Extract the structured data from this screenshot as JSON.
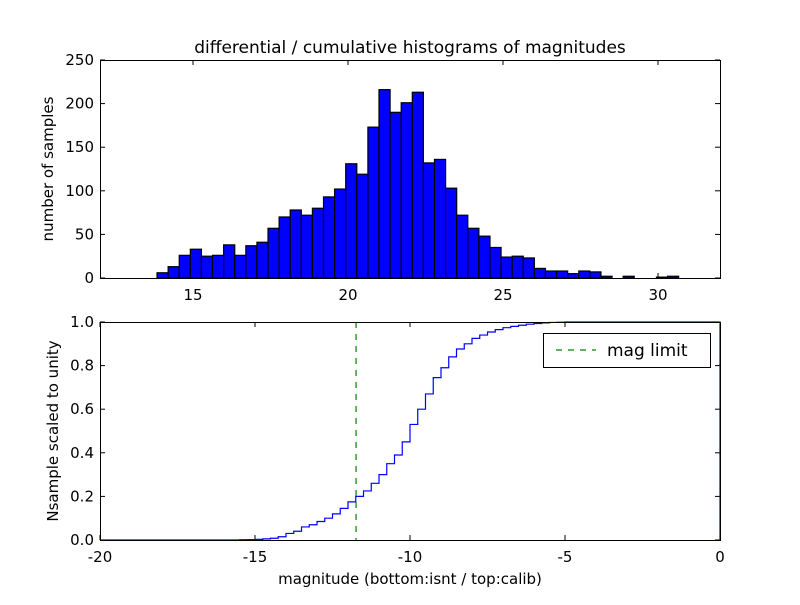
{
  "chart_data": [
    {
      "type": "bar",
      "title": "differential / cumulative histograms of magnitudes",
      "xlabel": "",
      "ylabel": "number of samples",
      "xlim": [
        12,
        32
      ],
      "ylim": [
        0,
        250
      ],
      "xticks": [
        15,
        20,
        25,
        30
      ],
      "yticks": [
        0,
        50,
        100,
        150,
        200,
        250
      ],
      "bin_start": 13.84,
      "bin_width": 0.358,
      "values": [
        6,
        13,
        26,
        33,
        25,
        26,
        38,
        26,
        37,
        41,
        57,
        70,
        78,
        72,
        80,
        93,
        102,
        131,
        119,
        173,
        216,
        190,
        201,
        213,
        132,
        136,
        103,
        72,
        57,
        48,
        35,
        24,
        25,
        23,
        11,
        8,
        8,
        5,
        8,
        7,
        2,
        0,
        2,
        0,
        0,
        1,
        2
      ],
      "color": "#0000ff"
    },
    {
      "type": "line",
      "title": "",
      "xlabel": "magnitude (bottom:isnt / top:calib)",
      "ylabel": "Nsample scaled to unity",
      "xlim": [
        -20,
        0
      ],
      "ylim": [
        0,
        1
      ],
      "xticks": [
        -20,
        -15,
        -10,
        -5,
        0
      ],
      "ytick_labels": [
        "0.0",
        "0.2",
        "0.4",
        "0.6",
        "0.8",
        "1.0"
      ],
      "step_start": -15.5,
      "step_width": 0.25,
      "cdf": [
        0.001,
        0.002,
        0.003,
        0.005,
        0.008,
        0.015,
        0.03,
        0.04,
        0.06,
        0.07,
        0.085,
        0.1,
        0.12,
        0.145,
        0.175,
        0.2,
        0.225,
        0.26,
        0.3,
        0.35,
        0.39,
        0.45,
        0.53,
        0.6,
        0.67,
        0.745,
        0.79,
        0.84,
        0.876,
        0.9,
        0.925,
        0.94,
        0.954,
        0.965,
        0.974,
        0.98,
        0.985,
        0.99,
        0.993,
        0.996,
        0.998,
        0.999,
        1.0
      ],
      "line_color": "#0000ff",
      "mag_limit": -11.74,
      "mag_limit_color": "#008000",
      "legend": {
        "label": "mag limit",
        "placement": "top-right"
      }
    }
  ]
}
